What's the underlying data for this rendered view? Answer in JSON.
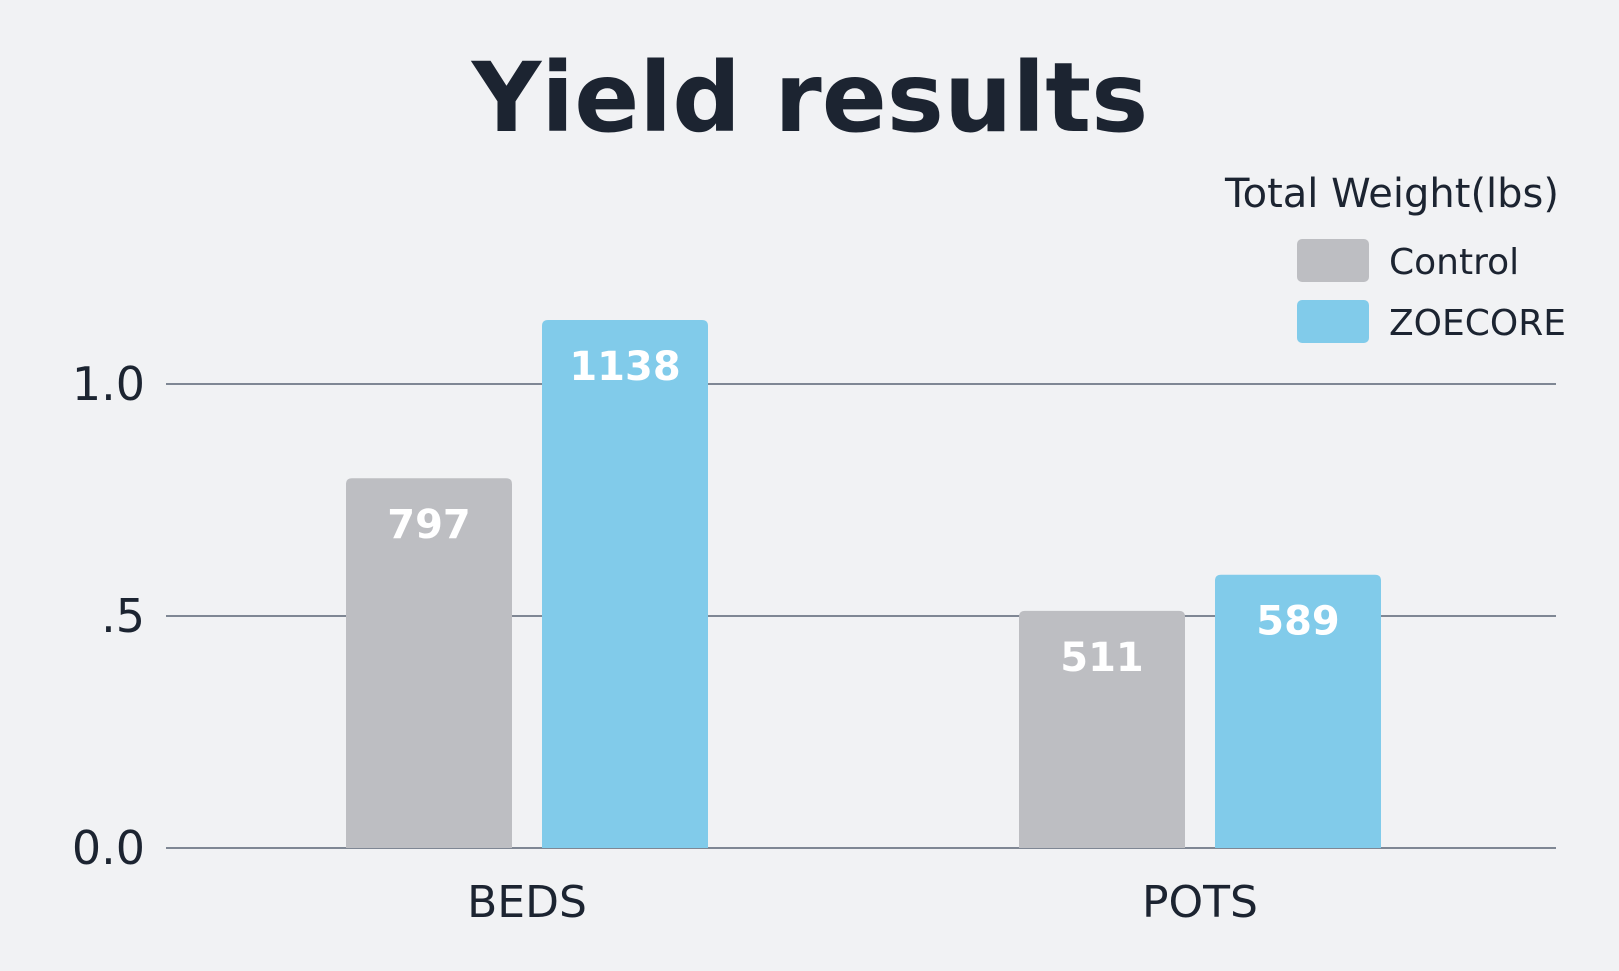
{
  "chart_data": {
    "type": "bar",
    "title": "Yield results",
    "legend_title": "Total Weight(lbs)",
    "legend_position": "top-right",
    "categories": [
      "BEDS",
      "POTS"
    ],
    "series": [
      {
        "name": "Control",
        "color": "#bdbec2",
        "values": [
          797,
          511
        ]
      },
      {
        "name": "ZOECORE",
        "color": "#81cbea",
        "values": [
          1138,
          589
        ]
      }
    ],
    "y_tick_labels": [
      "0.0",
      ".5",
      "1.0"
    ],
    "y_tick_positions": [
      0,
      500,
      1000
    ],
    "ylim": [
      0,
      1300
    ],
    "grid": true
  }
}
